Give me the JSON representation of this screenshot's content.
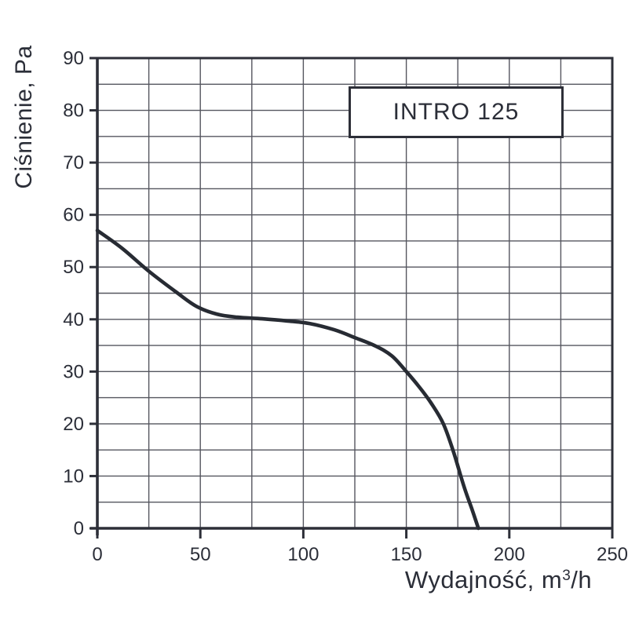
{
  "page": {
    "background": "#ffffff"
  },
  "chart_data": {
    "type": "line",
    "title": "INTRO 125",
    "ylabel": "Ciśnienie, Pa",
    "xlabel": "Wydajność, m³/h",
    "xlabel_parts": {
      "prefix": "Wydajność, m",
      "sup": "3",
      "suffix": "/h"
    },
    "xlim": [
      0,
      250
    ],
    "ylim": [
      0,
      90
    ],
    "x_tick_labels": [
      0,
      50,
      100,
      150,
      200,
      250
    ],
    "y_tick_labels": [
      0,
      10,
      20,
      30,
      40,
      50,
      60,
      70,
      80,
      90
    ],
    "x_grid_step": 25,
    "y_grid_step": 5,
    "grid": "on",
    "legend": "none",
    "series": [
      {
        "name": "INTRO 125",
        "points": [
          [
            0,
            57
          ],
          [
            12,
            53.6
          ],
          [
            25,
            49.2
          ],
          [
            38,
            45.3
          ],
          [
            48,
            42.5
          ],
          [
            58,
            41.0
          ],
          [
            68,
            40.4
          ],
          [
            80,
            40.1
          ],
          [
            92,
            39.7
          ],
          [
            103,
            39.2
          ],
          [
            115,
            38.0
          ],
          [
            125,
            36.5
          ],
          [
            135,
            34.9
          ],
          [
            143,
            33.0
          ],
          [
            150,
            30.0
          ],
          [
            156,
            27.2
          ],
          [
            162,
            24.0
          ],
          [
            168,
            20.0
          ],
          [
            173,
            14.5
          ],
          [
            178,
            8.0
          ],
          [
            182,
            3.5
          ],
          [
            185,
            0
          ]
        ]
      }
    ],
    "colors": {
      "background": "#ffffff",
      "text": "#2b2e38",
      "grid": "#55565f",
      "frame": "#2d2f38",
      "curve": "#272b33"
    }
  }
}
